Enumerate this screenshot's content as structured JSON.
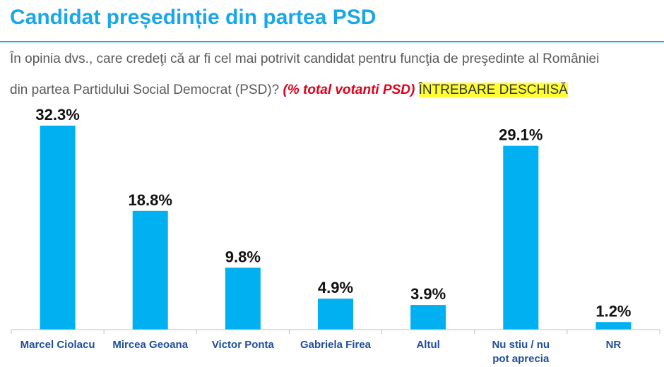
{
  "header": {
    "title": "Candidat președinție din partea PSD"
  },
  "question": {
    "line1": "În opinia dvs., care credeţi că ar fi cel mai potrivit candidat pentru funcţia de preşedinte al României",
    "line2": "din partea Partidului Social Democrat (PSD)?",
    "emphasis": "(% total votanti PSD)",
    "highlight": "ÎNTREBARE DESCHISĂ"
  },
  "chart_data": {
    "type": "bar",
    "categories": [
      "Marcel Ciolacu",
      "Mircea Geoana",
      "Victor Ponta",
      "Gabriela Firea",
      "Altul",
      "Nu stiu / nu pot aprecia",
      "NR"
    ],
    "values": [
      32.3,
      18.8,
      9.8,
      4.9,
      3.9,
      29.1,
      1.2
    ],
    "value_labels": [
      "32.3%",
      "18.8%",
      "9.8%",
      "4.9%",
      "3.9%",
      "29.1%",
      "1.2%"
    ],
    "ylim": [
      0,
      32.3
    ],
    "grid": false,
    "colors": {
      "bar": "#00b0f0",
      "value_label": "#111111",
      "category_label": "#1f4e9c"
    }
  }
}
